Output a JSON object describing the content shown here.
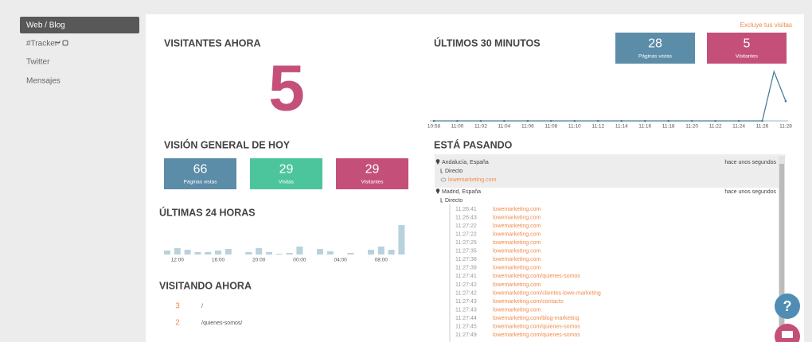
{
  "sidebar": {
    "items": [
      "Web / Blog",
      "#Tracker",
      "Twitter",
      "Mensajes"
    ]
  },
  "exclude_link": "Excluye tus visitas",
  "visitors_now": {
    "title": "VISITANTES AHORA",
    "value": 5
  },
  "last_30_minutes": {
    "title": "ÚLTIMOS 30 MINUTOS",
    "stats": [
      {
        "value": 28,
        "label": "Páginas vistas",
        "color": "#5b8ca8"
      },
      {
        "value": 5,
        "label": "Visitantes",
        "color": "#c45079"
      }
    ],
    "chart": {
      "type": "line",
      "color": "#4a7f9c",
      "categories": [
        "10:58",
        null,
        "11:00",
        null,
        "11:02",
        null,
        "11:04",
        null,
        "11:06",
        null,
        "11:08",
        null,
        "11:10",
        null,
        "11:12",
        null,
        "11:14",
        null,
        "11:16",
        null,
        "11:18",
        null,
        "11:20",
        null,
        "11:22",
        null,
        "11:24",
        null,
        "11:26",
        null,
        "11:28"
      ],
      "values": [
        0,
        0,
        0,
        0,
        0,
        0,
        0,
        0,
        0,
        0,
        0,
        0,
        0,
        0,
        0,
        0,
        0,
        0,
        0,
        0,
        0,
        0,
        0,
        0,
        0,
        0,
        0,
        0,
        0,
        10,
        4
      ]
    }
  },
  "today_overview": {
    "title": "VISIÓN GENERAL DE HOY",
    "stats": [
      {
        "value": 66,
        "label": "Páginas vistas",
        "color": "#5b8ca8"
      },
      {
        "value": 29,
        "label": "Visitas",
        "color": "#4dc59c"
      },
      {
        "value": 29,
        "label": "Visitantes",
        "color": "#c45079"
      }
    ]
  },
  "last_24_hours": {
    "title": "ÚLTIMAS 24 HORAS",
    "chart": {
      "type": "bar",
      "color": "#b9d1dd",
      "categories": [
        null,
        "12:00",
        null,
        null,
        null,
        "16:00",
        null,
        null,
        null,
        "20:00",
        null,
        null,
        null,
        "00:00",
        null,
        null,
        null,
        "04:00",
        null,
        null,
        null,
        "08:00",
        null,
        null
      ],
      "values": [
        5,
        8,
        6,
        3,
        3,
        5,
        7,
        0,
        3,
        8,
        3,
        1,
        2,
        10,
        0,
        7,
        4,
        0,
        2,
        0,
        6,
        10,
        6,
        37
      ]
    }
  },
  "visiting_now": {
    "title": "VISITANDO AHORA",
    "rows": [
      {
        "count": 3,
        "path": "/"
      },
      {
        "count": 2,
        "path": "/quienes-somos/"
      }
    ]
  },
  "happening": {
    "title": "ESTÁ PASANDO",
    "entries": [
      {
        "location": "Andalucía, España",
        "time": "hace unos segundos",
        "source": "Directo",
        "visits": [
          {
            "url": "lowemarketing.com"
          }
        ]
      },
      {
        "location": "Madrid, España",
        "time": "hace unos segundos",
        "source": "Directo",
        "visits": [
          {
            "time": "11:26:41",
            "url": "lowemarketing.com"
          },
          {
            "time": "11:26:43",
            "url": "lowemarketing.com"
          },
          {
            "time": "11:27:22",
            "url": "lowemarketing.com"
          },
          {
            "time": "11:27:22",
            "url": "lowemarketing.com"
          },
          {
            "time": "11:27:25",
            "url": "lowemarketing.com"
          },
          {
            "time": "11:27:35",
            "url": "lowemarketing.com"
          },
          {
            "time": "11:27:38",
            "url": "lowemarketing.com"
          },
          {
            "time": "11:27:39",
            "url": "lowemarketing.com"
          },
          {
            "time": "11:27:41",
            "url": "lowemarketing.com/quienes-somos"
          },
          {
            "time": "11:27:42",
            "url": "lowemarketing.com"
          },
          {
            "time": "11:27:42",
            "url": "lowemarketing.com/clientes-lowe-marketing"
          },
          {
            "time": "11:27:43",
            "url": "lowemarketing.com/contacto"
          },
          {
            "time": "11:27:43",
            "url": "lowemarketing.com"
          },
          {
            "time": "11:27:44",
            "url": "lowemarketing.com/blog-marketing"
          },
          {
            "time": "11:27:45",
            "url": "lowemarketing.com/quienes-somos"
          },
          {
            "time": "11:27:49",
            "url": "lowemarketing.com/quienes-somos"
          }
        ]
      }
    ]
  }
}
